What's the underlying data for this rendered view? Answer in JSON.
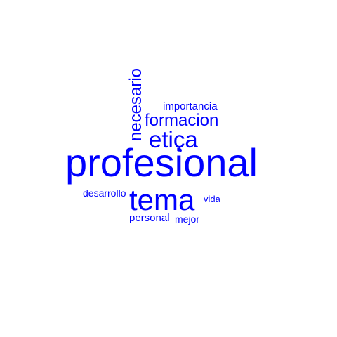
{
  "wordcloud": {
    "color": "#0000ff",
    "words": {
      "profesional": "profesional",
      "tema": "tema",
      "etica": "etiça",
      "formacion": "formacion",
      "necesario": "necesario",
      "importancia": "importancia",
      "desarrollo": "desarrollo",
      "vida": "vida",
      "personal": "personal",
      "mejor": "mejor"
    }
  }
}
